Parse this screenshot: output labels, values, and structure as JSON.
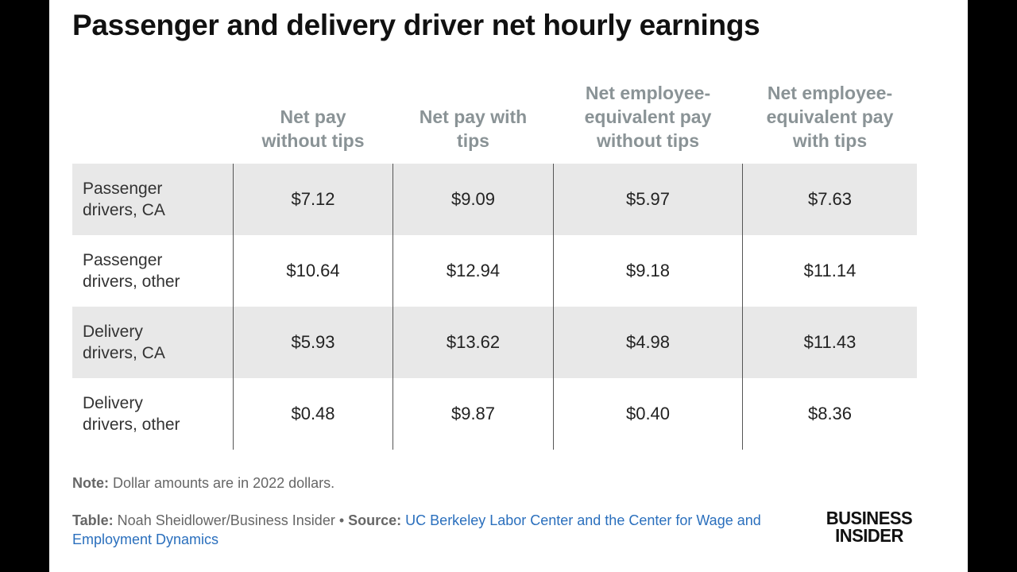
{
  "title": "Passenger and delivery driver net hourly earnings",
  "chart_data": {
    "type": "table",
    "columns": [
      "Net pay without tips",
      "Net pay with tips",
      "Net employee-equivalent pay without tips",
      "Net employee-equivalent pay with tips"
    ],
    "rows": [
      {
        "label": "Passenger drivers, CA",
        "values": [
          "$7.12",
          "$9.09",
          "$5.97",
          "$7.63"
        ]
      },
      {
        "label": "Passenger drivers, other",
        "values": [
          "$10.64",
          "$12.94",
          "$9.18",
          "$11.14"
        ]
      },
      {
        "label": "Delivery drivers, CA",
        "values": [
          "$5.93",
          "$13.62",
          "$4.98",
          "$11.43"
        ]
      },
      {
        "label": "Delivery drivers, other",
        "values": [
          "$0.48",
          "$9.87",
          "$0.40",
          "$8.36"
        ]
      }
    ]
  },
  "header_lines": [
    [
      "Net pay",
      "without tips"
    ],
    [
      "Net pay with",
      "tips"
    ],
    [
      "Net employee-",
      "equivalent pay",
      "without tips"
    ],
    [
      "Net employee-",
      "equivalent pay",
      "with tips"
    ]
  ],
  "row_label_lines": [
    [
      "Passenger",
      "drivers, CA"
    ],
    [
      "Passenger",
      "drivers, other"
    ],
    [
      "Delivery",
      "drivers, CA"
    ],
    [
      "Delivery",
      "drivers, other"
    ]
  ],
  "note": {
    "label": "Note:",
    "text": " Dollar amounts are in 2022 dollars."
  },
  "credit": {
    "table_label": "Table:",
    "table_text": " Noah Sheidlower/Business Insider • ",
    "source_label": "Source:",
    "source_link": "UC Berkeley Labor Center and the Center for Wage and Employment Dynamics"
  },
  "logo": {
    "line1": "BUSINESS",
    "line2": "INSIDER"
  },
  "colors": {
    "header_text": "#8a9396",
    "row_shade": "#e8e8e8",
    "link": "#2a6fbd"
  }
}
